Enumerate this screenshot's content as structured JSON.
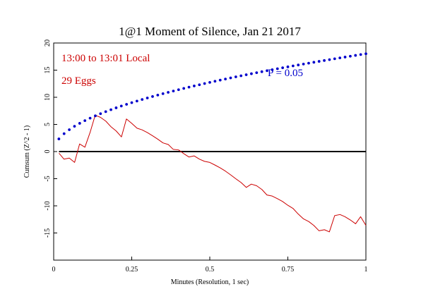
{
  "chart_data": {
    "type": "line",
    "title": "1@1 Moment of Silence, Jan 21 2017",
    "xlabel": "Minutes (Resolution, 1 sec)",
    "ylabel": "Cumsum (Z^2 - 1)",
    "xlim": [
      0,
      1
    ],
    "ylim": [
      -20,
      20
    ],
    "x_ticks": [
      0,
      0.25,
      0.5,
      0.75,
      1
    ],
    "x_tick_labels": [
      "0",
      "0.25",
      "0.5",
      "0.75",
      "1"
    ],
    "y_ticks": [
      20,
      15,
      10,
      5,
      0,
      -5,
      -10,
      -15
    ],
    "y_tick_labels": [
      "20",
      "15",
      "10",
      "5",
      "0",
      "-5",
      "-10",
      "-15"
    ],
    "grid": false,
    "annotations": [
      {
        "text": "13:00 to 13:01 Local",
        "color": "#cc0000"
      },
      {
        "text": "29 Eggs",
        "color": "#cc0000"
      },
      {
        "text": "P = 0.05",
        "color": "#0000cc"
      }
    ],
    "series": [
      {
        "color": "#cc0000",
        "style": "solid",
        "points": [
          [
            0.017,
            -0.3
          ],
          [
            0.033,
            -1.4
          ],
          [
            0.05,
            -1.2
          ],
          [
            0.067,
            -2.0
          ],
          [
            0.083,
            1.4
          ],
          [
            0.1,
            0.8
          ],
          [
            0.117,
            3.6
          ],
          [
            0.133,
            6.7
          ],
          [
            0.15,
            6.3
          ],
          [
            0.167,
            5.6
          ],
          [
            0.183,
            4.6
          ],
          [
            0.2,
            3.8
          ],
          [
            0.217,
            2.7
          ],
          [
            0.233,
            6.0
          ],
          [
            0.25,
            5.2
          ],
          [
            0.267,
            4.3
          ],
          [
            0.283,
            4.0
          ],
          [
            0.3,
            3.5
          ],
          [
            0.317,
            2.9
          ],
          [
            0.333,
            2.3
          ],
          [
            0.35,
            1.6
          ],
          [
            0.367,
            1.3
          ],
          [
            0.383,
            0.4
          ],
          [
            0.4,
            0.3
          ],
          [
            0.417,
            -0.4
          ],
          [
            0.433,
            -1.0
          ],
          [
            0.45,
            -0.8
          ],
          [
            0.467,
            -1.4
          ],
          [
            0.483,
            -1.8
          ],
          [
            0.5,
            -2.0
          ],
          [
            0.517,
            -2.5
          ],
          [
            0.533,
            -3.0
          ],
          [
            0.55,
            -3.6
          ],
          [
            0.567,
            -4.3
          ],
          [
            0.583,
            -5.0
          ],
          [
            0.6,
            -5.7
          ],
          [
            0.617,
            -6.6
          ],
          [
            0.633,
            -6.0
          ],
          [
            0.65,
            -6.3
          ],
          [
            0.667,
            -7.0
          ],
          [
            0.683,
            -8.0
          ],
          [
            0.7,
            -8.2
          ],
          [
            0.717,
            -8.7
          ],
          [
            0.733,
            -9.2
          ],
          [
            0.75,
            -9.9
          ],
          [
            0.767,
            -10.5
          ],
          [
            0.783,
            -11.5
          ],
          [
            0.8,
            -12.4
          ],
          [
            0.817,
            -12.9
          ],
          [
            0.833,
            -13.6
          ],
          [
            0.85,
            -14.6
          ],
          [
            0.867,
            -14.4
          ],
          [
            0.883,
            -14.8
          ],
          [
            0.9,
            -11.8
          ],
          [
            0.917,
            -11.6
          ],
          [
            0.933,
            -12.0
          ],
          [
            0.95,
            -12.6
          ],
          [
            0.967,
            -13.3
          ],
          [
            0.983,
            -12.0
          ],
          [
            1.0,
            -13.6
          ]
        ]
      },
      {
        "name": "P = 0.05",
        "color": "#0000cc",
        "style": "dotted",
        "formula": "1.645 * sqrt(2 * 60 * x)",
        "points_count": 60
      }
    ]
  }
}
